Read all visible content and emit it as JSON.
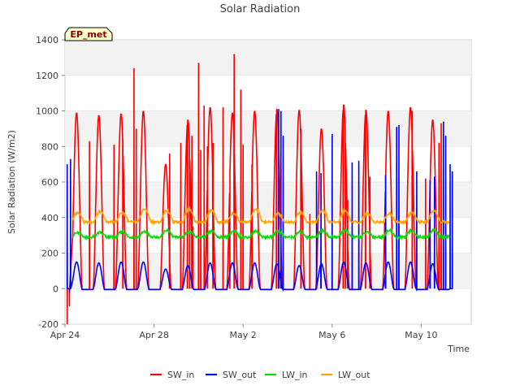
{
  "chart_data": {
    "type": "line",
    "title": "Solar Radiation",
    "badge": "EP_met",
    "xlabel": "Time",
    "ylabel": "Solar Radiation (W/m2)",
    "xlim_days": [
      0,
      18.25
    ],
    "ylim": [
      -200,
      1400
    ],
    "x_ticks": [
      {
        "day": 0,
        "label": "Apr 24"
      },
      {
        "day": 4,
        "label": "Apr 28"
      },
      {
        "day": 8,
        "label": "May 2"
      },
      {
        "day": 12,
        "label": "May 6"
      },
      {
        "day": 16,
        "label": "May 10"
      }
    ],
    "y_ticks": [
      -200,
      0,
      200,
      400,
      600,
      800,
      1000,
      1200,
      1400
    ],
    "grid": "horizontal bands",
    "legend_position": "bottom",
    "series": [
      {
        "name": "SW_in",
        "color": "#ff0000",
        "peaks": [
          990,
          975,
          985,
          1000,
          700,
          950,
          1020,
          990,
          1000,
          1010,
          1005,
          900,
          1035,
          1005,
          1000,
          1020,
          950
        ],
        "spikes": [
          [
            0.1,
            -200
          ],
          [
            0.2,
            -100
          ],
          [
            1.1,
            830
          ],
          [
            2.2,
            810
          ],
          [
            2.6,
            840
          ],
          [
            3.1,
            1240
          ],
          [
            3.2,
            900
          ],
          [
            4.7,
            760
          ],
          [
            5.2,
            820
          ],
          [
            5.5,
            780
          ],
          [
            5.6,
            680
          ],
          [
            5.7,
            860
          ],
          [
            5.75,
            350
          ],
          [
            6.0,
            1270
          ],
          [
            6.1,
            780
          ],
          [
            6.25,
            1030
          ],
          [
            6.4,
            800
          ],
          [
            6.65,
            820
          ],
          [
            7.1,
            1020
          ],
          [
            7.4,
            540
          ],
          [
            7.6,
            1320
          ],
          [
            7.9,
            1120
          ],
          [
            8.0,
            810
          ],
          [
            8.4,
            700
          ],
          [
            9.5,
            740
          ],
          [
            10.6,
            900
          ],
          [
            11.0,
            420
          ],
          [
            12.5,
            640
          ],
          [
            12.6,
            820
          ],
          [
            12.7,
            500
          ],
          [
            13.5,
            250
          ],
          [
            13.7,
            630
          ],
          [
            14.4,
            500
          ],
          [
            15.6,
            1000
          ],
          [
            16.2,
            620
          ],
          [
            16.8,
            820
          ],
          [
            16.9,
            930
          ]
        ]
      },
      {
        "name": "SW_out",
        "color": "#0000ff",
        "peaks": [
          150,
          145,
          150,
          150,
          110,
          130,
          145,
          145,
          145,
          140,
          130,
          140,
          150,
          145,
          150,
          150,
          140
        ],
        "spikes": [
          [
            0.1,
            700
          ],
          [
            0.25,
            730
          ],
          [
            0.2,
            -20
          ],
          [
            9.6,
            1010
          ],
          [
            9.7,
            1000
          ],
          [
            9.8,
            860
          ],
          [
            11.3,
            660
          ],
          [
            11.5,
            650
          ],
          [
            12.0,
            870
          ],
          [
            12.9,
            710
          ],
          [
            13.2,
            720
          ],
          [
            14.4,
            640
          ],
          [
            14.9,
            910
          ],
          [
            15.0,
            920
          ],
          [
            15.8,
            660
          ],
          [
            16.4,
            610
          ],
          [
            16.6,
            630
          ],
          [
            17.0,
            940
          ],
          [
            17.1,
            860
          ],
          [
            17.3,
            700
          ],
          [
            17.4,
            660
          ]
        ]
      },
      {
        "name": "LW_in",
        "color": "#00dd00",
        "base": 290,
        "amp": 40
      },
      {
        "name": "LW_out",
        "color": "#ffa500",
        "base": 375,
        "amp": 75
      }
    ]
  }
}
